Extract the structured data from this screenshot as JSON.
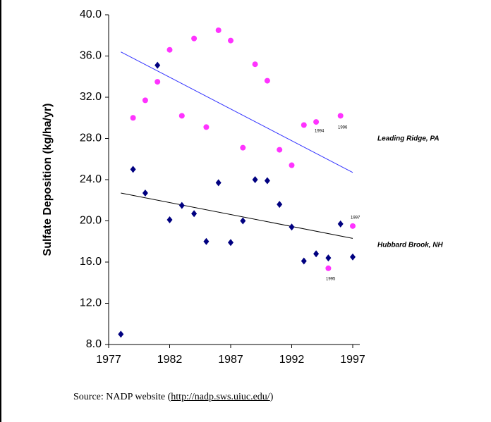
{
  "chart_data": {
    "type": "scatter",
    "ylabel": "Sulfate Deposition (kg/ha/yr)",
    "xlim": [
      1977,
      1997
    ],
    "xticks": [
      1977,
      1982,
      1987,
      1992,
      1997
    ],
    "ylim": [
      8,
      40
    ],
    "yticks": [
      {
        "value": 8,
        "label": "8.0"
      },
      {
        "value": 12,
        "label": "12.0"
      },
      {
        "value": 16,
        "label": "16.0"
      },
      {
        "value": 20,
        "label": "20.0"
      },
      {
        "value": 24,
        "label": "24.0"
      },
      {
        "value": 28,
        "label": "28.0"
      },
      {
        "value": 32,
        "label": "32.0"
      },
      {
        "value": 36,
        "label": "36.0"
      },
      {
        "value": 40,
        "label": "40.0"
      }
    ],
    "series": [
      {
        "name": "Leading Ridge, PA",
        "color": "#ff33ff",
        "marker": "circle",
        "trend_color": "#3333ff",
        "x": [
          1979,
          1980,
          1981,
          1982,
          1983,
          1984,
          1985,
          1986,
          1987,
          1988,
          1989,
          1990,
          1991,
          1992,
          1993,
          1994,
          1995,
          1996,
          1997
        ],
        "values": [
          30.0,
          31.7,
          33.5,
          36.6,
          30.2,
          37.7,
          29.1,
          38.5,
          37.5,
          27.1,
          35.2,
          33.6,
          26.9,
          25.4,
          29.3,
          29.6,
          15.4,
          30.2,
          19.5
        ],
        "trend": {
          "x": [
            1978,
            1997
          ],
          "values": [
            36.4,
            24.7
          ]
        }
      },
      {
        "name": "Hubbard Brook, NH",
        "color": "#000080",
        "marker": "diamond",
        "trend_color": "#000000",
        "x": [
          1978,
          1979,
          1980,
          1981,
          1982,
          1983,
          1984,
          1985,
          1986,
          1987,
          1988,
          1989,
          1990,
          1991,
          1992,
          1993,
          1994,
          1995,
          1996,
          1997
        ],
        "values": [
          9.0,
          25.0,
          22.7,
          35.1,
          20.1,
          21.5,
          20.7,
          18.0,
          23.7,
          17.9,
          20.0,
          24.0,
          23.9,
          21.6,
          19.4,
          16.1,
          16.8,
          16.4,
          19.7,
          16.5
        ],
        "trend": {
          "x": [
            1978,
            1997
          ],
          "values": [
            22.7,
            18.3
          ]
        }
      }
    ],
    "annotations": [
      "1994",
      "1996",
      "1995",
      "1997"
    ]
  },
  "source": {
    "prefix": "Source: NADP website (",
    "link": "http://nadp.sws.uiuc.edu/",
    "suffix": ")"
  }
}
